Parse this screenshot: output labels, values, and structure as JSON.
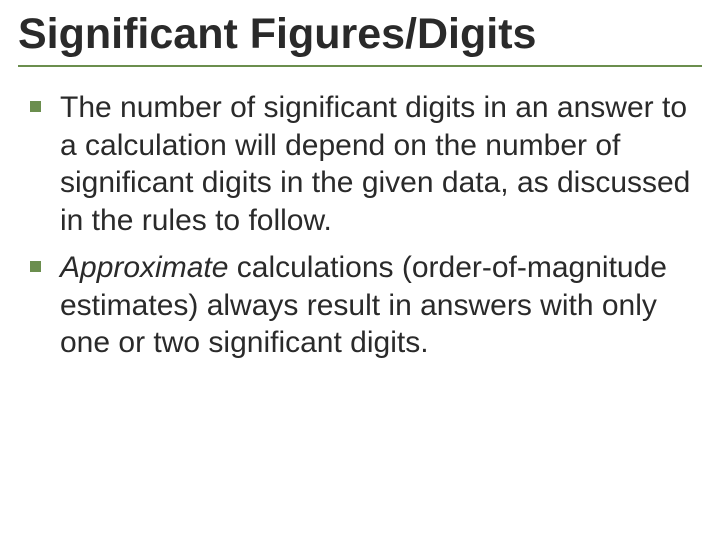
{
  "slide": {
    "title": "Significant Figures/Digits",
    "title_fontsize": 43,
    "title_color": "#2a2a2a",
    "underline_color": "#6b8e4e",
    "bullet_color": "#6b8e4e",
    "body_fontsize": 30,
    "body_color": "#2a2a2a",
    "background_color": "#ffffff",
    "bullets": [
      {
        "text": "The number of significant digits in an answer to a calculation will depend on the number of significant digits in the given data, as discussed in the rules to follow.",
        "italic_prefix": ""
      },
      {
        "text_prefix_italic": "Approximate",
        "text_rest": " calculations (order-of-magnitude estimates) always result in answers with only one or two significant digits."
      }
    ]
  }
}
